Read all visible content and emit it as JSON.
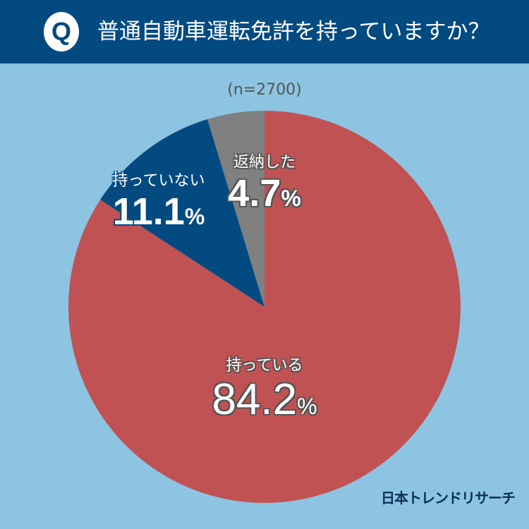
{
  "header": {
    "badge": "Q",
    "title": "普通自動車運転免許を持っていますか？"
  },
  "sample_size": "(n=2700)",
  "brand": "日本トレンドリサーチ",
  "colors": {
    "background": "#8cc4e1",
    "header": "#034a81",
    "have": "#c05253",
    "dont_have": "#034a81",
    "returned": "#808080"
  },
  "labels": {
    "have": {
      "name": "持っている",
      "value": "84.2",
      "unit": "%"
    },
    "dont_have": {
      "name": "持っていない",
      "value": "11.1",
      "unit": "%"
    },
    "returned": {
      "name": "返納した",
      "value": "4.7",
      "unit": "%"
    }
  },
  "chart_data": {
    "type": "pie",
    "title": "普通自動車運転免許を持っていますか？",
    "subtitle": "(n=2700)",
    "categories": [
      "持っている",
      "持っていない",
      "返納した"
    ],
    "values": [
      84.2,
      11.1,
      4.7
    ],
    "unit": "%",
    "colors": [
      "#c05253",
      "#034a81",
      "#808080"
    ],
    "start_angle": "12 o'clock, clockwise"
  }
}
